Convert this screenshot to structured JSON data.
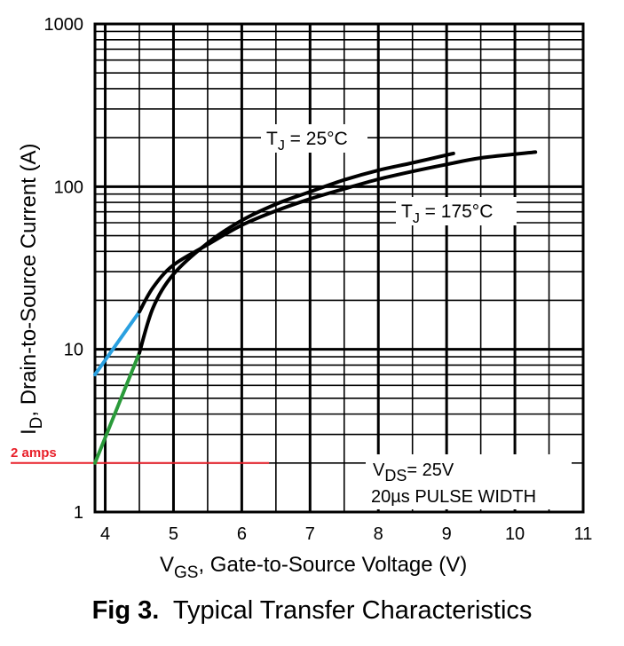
{
  "chart_data": {
    "type": "line",
    "scale": {
      "x": "linear",
      "y": "log"
    },
    "xlim": [
      3.85,
      11
    ],
    "ylim": [
      1,
      1000
    ],
    "grid": true,
    "x_ticks": [
      "4",
      "5",
      "6",
      "7",
      "8",
      "9",
      "10",
      "11"
    ],
    "y_ticks": [
      "1",
      "10",
      "100",
      "1000"
    ],
    "xlabel": {
      "main": "V",
      "sub": "GS",
      "rest": ", Gate-to-Source Voltage (V)"
    },
    "ylabel": {
      "main": "I",
      "sub": "D",
      "rest": ",  Drain-to-Source Current (A)"
    },
    "series": [
      {
        "name": "TJ = 25°C",
        "label_parts": {
          "main": "T",
          "sub": "J",
          "rest": " = 25°C"
        },
        "x": [
          4.5,
          4.7,
          5.0,
          5.5,
          6.0,
          6.5,
          7.0,
          7.5,
          8.0,
          8.5,
          9.1
        ],
        "y": [
          9.5,
          18,
          29,
          45,
          62,
          78,
          93,
          110,
          126,
          140,
          160
        ]
      },
      {
        "name": "TJ = 175°C",
        "label_parts": {
          "main": "T",
          "sub": "J",
          "rest": " = 175°C"
        },
        "x": [
          4.5,
          4.7,
          5.0,
          5.5,
          6.0,
          6.5,
          7.0,
          7.5,
          8.0,
          8.5,
          9.0,
          9.5,
          10.3
        ],
        "y": [
          17,
          24,
          33,
          44,
          58,
          71,
          84,
          97,
          111,
          124,
          137,
          150,
          163
        ]
      }
    ],
    "extrapolations": [
      {
        "color": "#2aa0e0",
        "x": [
          3.85,
          4.5
        ],
        "y": [
          7,
          17
        ]
      },
      {
        "color": "#2a9a3a",
        "x": [
          3.85,
          4.5
        ],
        "y": [
          2,
          9.5
        ]
      }
    ],
    "marker_line": {
      "color": "#e8202a",
      "y": 2,
      "x_end": 6.4,
      "label": "2 amps"
    },
    "annotation": {
      "line1_main": "V",
      "line1_sub": "DS",
      "line1_rest": "= 25V",
      "line2": "20µs PULSE WIDTH"
    },
    "caption": {
      "bold": "Fig 3.",
      "text": "Typical Transfer Characteristics"
    }
  }
}
